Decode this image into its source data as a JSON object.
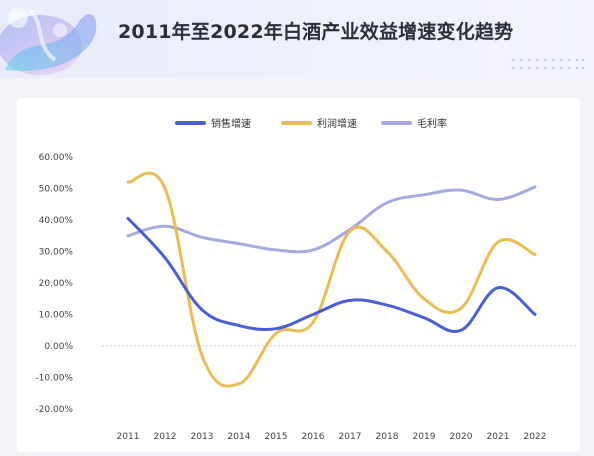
{
  "header": {
    "title": "2011年至2022年白酒产业效益增速变化趋势"
  },
  "colors": {
    "sales": "#4a5fd6",
    "profit": "#e9bd55",
    "margin": "#a4aadf",
    "axis_text": "#444444",
    "zero_line": "#bbbbbb"
  },
  "chart_data": {
    "type": "line",
    "title": "",
    "xlabel": "",
    "ylabel": "",
    "x": [
      "2011",
      "2012",
      "2013",
      "2014",
      "2015",
      "2016",
      "2017",
      "2018",
      "2019",
      "2020",
      "2021",
      "2022"
    ],
    "y_ticks": [
      "60.00%",
      "50.00%",
      "40.00%",
      "30.00%",
      "20.00%",
      "10.00%",
      "0.00%",
      "-10.00%",
      "-20.00%"
    ],
    "ylim": [
      -20,
      60
    ],
    "legend_position": "top-center",
    "grid": false,
    "smooth": true,
    "series": [
      {
        "name": "销售增速",
        "color": "#4a5fd6",
        "values": [
          40.5,
          28,
          11.5,
          6.5,
          5.5,
          10,
          14.5,
          13,
          9,
          5,
          18.5,
          10
        ]
      },
      {
        "name": "利润增速",
        "color": "#e9bd55",
        "values": [
          52,
          50,
          -3,
          -12,
          4,
          7.5,
          36.5,
          30,
          15,
          12,
          33,
          29
        ]
      },
      {
        "name": "毛利率",
        "color": "#a4aadf",
        "values": [
          35,
          38,
          34.5,
          32.5,
          30.5,
          30.5,
          37,
          45.5,
          48,
          49.5,
          46.5,
          50.5
        ]
      }
    ]
  }
}
